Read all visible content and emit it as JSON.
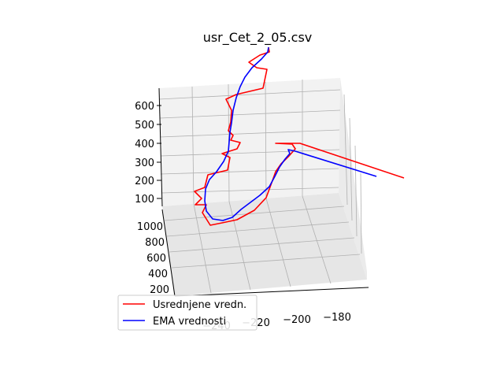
{
  "chart_data": {
    "type": "line",
    "projection": "3d",
    "title": "usr_Cet_2_05.csv",
    "xlabel": "",
    "ylabel": "",
    "zlabel": "",
    "grid": true,
    "legend_position": "lower-left",
    "x_ticks": [
      "−240",
      "−220",
      "−200",
      "−180"
    ],
    "y_ticks": [
      "200",
      "400",
      "600",
      "800",
      "1000"
    ],
    "z_ticks": [
      "100",
      "200",
      "300",
      "400",
      "500",
      "600"
    ],
    "colors": {
      "series_1": "#ff0000",
      "series_2": "#0000ff"
    },
    "series": [
      {
        "name": "Usrednjene vredn.",
        "color": "#ff0000"
      },
      {
        "name": "EMA vrednosti",
        "color": "#0000ff"
      }
    ]
  }
}
